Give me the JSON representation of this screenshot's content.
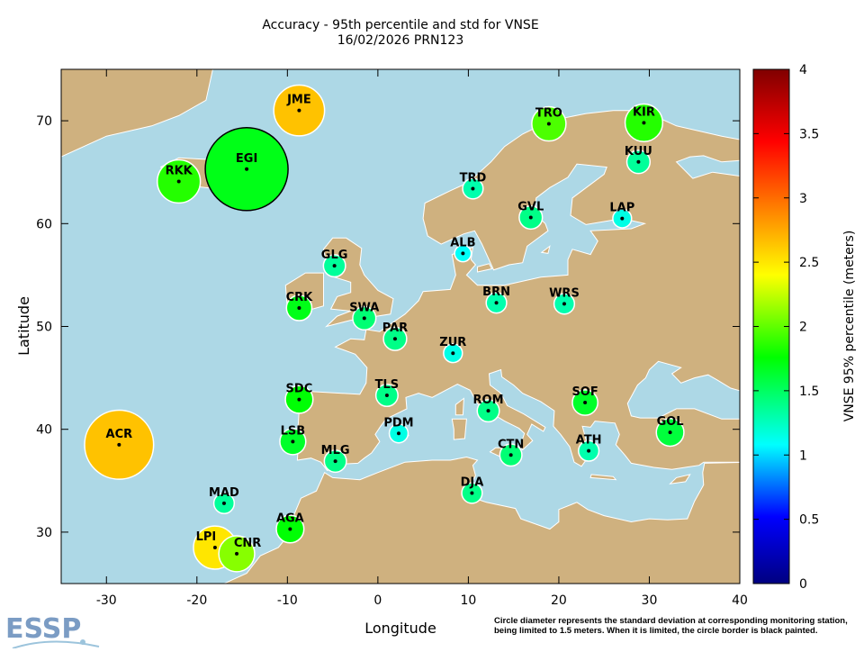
{
  "chart_data": {
    "type": "scatter",
    "title": "Accuracy - 95th percentile and std for VNSE",
    "subtitle": "16/02/2026 PRN123",
    "xlabel": "Longitude",
    "ylabel": "Latitude",
    "xlim": [
      -35,
      40
    ],
    "ylim": [
      25,
      75
    ],
    "xticks": [
      -30,
      -20,
      -10,
      0,
      10,
      20,
      30,
      40
    ],
    "yticks": [
      30,
      40,
      50,
      60,
      70
    ],
    "colorbar": {
      "label": "VNSE 95% percentile (meters)",
      "range": [
        0,
        4
      ],
      "ticks": [
        "0",
        "0.5",
        "1",
        "1.5",
        "2",
        "2.5",
        "3",
        "3.5",
        "4"
      ],
      "colormap": "jet"
    },
    "std_limit_m": 1.5,
    "colors": {
      "sea": "#add8e6",
      "land": "#cfb17f",
      "limited_border": "#000000",
      "border": "#ffffff"
    },
    "stations": [
      {
        "code": "JME",
        "lon": -8.7,
        "lat": 71.0,
        "vnse95": 2.65,
        "std": 0.92,
        "limited": false
      },
      {
        "code": "EGI",
        "lon": -14.5,
        "lat": 65.3,
        "vnse95": 1.7,
        "std": 1.5,
        "limited": true
      },
      {
        "code": "RKK",
        "lon": -22.0,
        "lat": 64.1,
        "vnse95": 1.85,
        "std": 0.78,
        "limited": false
      },
      {
        "code": "ACR",
        "lon": -28.6,
        "lat": 38.5,
        "vnse95": 2.65,
        "std": 1.25,
        "limited": false
      },
      {
        "code": "TRO",
        "lon": 18.9,
        "lat": 69.7,
        "vnse95": 1.95,
        "std": 0.62,
        "limited": false
      },
      {
        "code": "KIR",
        "lon": 29.4,
        "lat": 69.8,
        "vnse95": 1.85,
        "std": 0.68,
        "limited": false
      },
      {
        "code": "KUU",
        "lon": 28.8,
        "lat": 66.0,
        "vnse95": 1.35,
        "std": 0.42,
        "limited": false
      },
      {
        "code": "TRD",
        "lon": 10.5,
        "lat": 63.4,
        "vnse95": 1.3,
        "std": 0.37,
        "limited": false
      },
      {
        "code": "GVL",
        "lon": 16.9,
        "lat": 60.6,
        "vnse95": 1.4,
        "std": 0.42,
        "limited": false
      },
      {
        "code": "LAP",
        "lon": 27.0,
        "lat": 60.5,
        "vnse95": 1.15,
        "std": 0.34,
        "limited": false
      },
      {
        "code": "ALB",
        "lon": 9.4,
        "lat": 57.1,
        "vnse95": 1.1,
        "std": 0.3,
        "limited": false
      },
      {
        "code": "GLG",
        "lon": -4.8,
        "lat": 55.9,
        "vnse95": 1.35,
        "std": 0.4,
        "limited": false
      },
      {
        "code": "CRK",
        "lon": -8.7,
        "lat": 51.8,
        "vnse95": 1.7,
        "std": 0.46,
        "limited": false
      },
      {
        "code": "SWA",
        "lon": -1.5,
        "lat": 50.8,
        "vnse95": 1.45,
        "std": 0.42,
        "limited": false
      },
      {
        "code": "BRN",
        "lon": 13.1,
        "lat": 52.3,
        "vnse95": 1.3,
        "std": 0.37,
        "limited": false
      },
      {
        "code": "WRS",
        "lon": 20.6,
        "lat": 52.2,
        "vnse95": 1.3,
        "std": 0.37,
        "limited": false
      },
      {
        "code": "PAR",
        "lon": 1.9,
        "lat": 48.8,
        "vnse95": 1.4,
        "std": 0.42,
        "limited": false
      },
      {
        "code": "ZUR",
        "lon": 8.3,
        "lat": 47.4,
        "vnse95": 1.15,
        "std": 0.34,
        "limited": false
      },
      {
        "code": "SDC",
        "lon": -8.7,
        "lat": 42.9,
        "vnse95": 1.75,
        "std": 0.5,
        "limited": false
      },
      {
        "code": "TLS",
        "lon": 1.0,
        "lat": 43.3,
        "vnse95": 1.4,
        "std": 0.4,
        "limited": false
      },
      {
        "code": "ROM",
        "lon": 12.2,
        "lat": 41.8,
        "vnse95": 1.4,
        "std": 0.4,
        "limited": false
      },
      {
        "code": "SOF",
        "lon": 22.9,
        "lat": 42.6,
        "vnse95": 1.65,
        "std": 0.46,
        "limited": false
      },
      {
        "code": "GOL",
        "lon": 32.3,
        "lat": 39.7,
        "vnse95": 1.6,
        "std": 0.5,
        "limited": false
      },
      {
        "code": "PDM",
        "lon": 2.3,
        "lat": 39.6,
        "vnse95": 1.15,
        "std": 0.34,
        "limited": false
      },
      {
        "code": "LSB",
        "lon": -9.4,
        "lat": 38.8,
        "vnse95": 1.65,
        "std": 0.47,
        "limited": false
      },
      {
        "code": "CTN",
        "lon": 14.7,
        "lat": 37.5,
        "vnse95": 1.45,
        "std": 0.4,
        "limited": false
      },
      {
        "code": "ATH",
        "lon": 23.3,
        "lat": 37.9,
        "vnse95": 1.3,
        "std": 0.37,
        "limited": false
      },
      {
        "code": "MLG",
        "lon": -4.7,
        "lat": 36.9,
        "vnse95": 1.4,
        "std": 0.4,
        "limited": false
      },
      {
        "code": "DJA",
        "lon": 10.4,
        "lat": 33.8,
        "vnse95": 1.4,
        "std": 0.37,
        "limited": false
      },
      {
        "code": "MAD",
        "lon": -17.0,
        "lat": 32.8,
        "vnse95": 1.35,
        "std": 0.37,
        "limited": false
      },
      {
        "code": "AGA",
        "lon": -9.7,
        "lat": 30.3,
        "vnse95": 1.75,
        "std": 0.5,
        "limited": false
      },
      {
        "code": "LPI",
        "lon": -18.0,
        "lat": 28.5,
        "vnse95": 2.5,
        "std": 0.78,
        "limited": false
      },
      {
        "code": "CNR",
        "lon": -15.6,
        "lat": 27.9,
        "vnse95": 2.1,
        "std": 0.65,
        "limited": false
      }
    ]
  },
  "footnote": {
    "line1": "Circle diameter represents the standard deviation at corresponding monitoring station,",
    "line2": "being limited to 1.5 meters. When it is limited, the circle border is black painted."
  },
  "logo": {
    "text": "ESSP"
  }
}
